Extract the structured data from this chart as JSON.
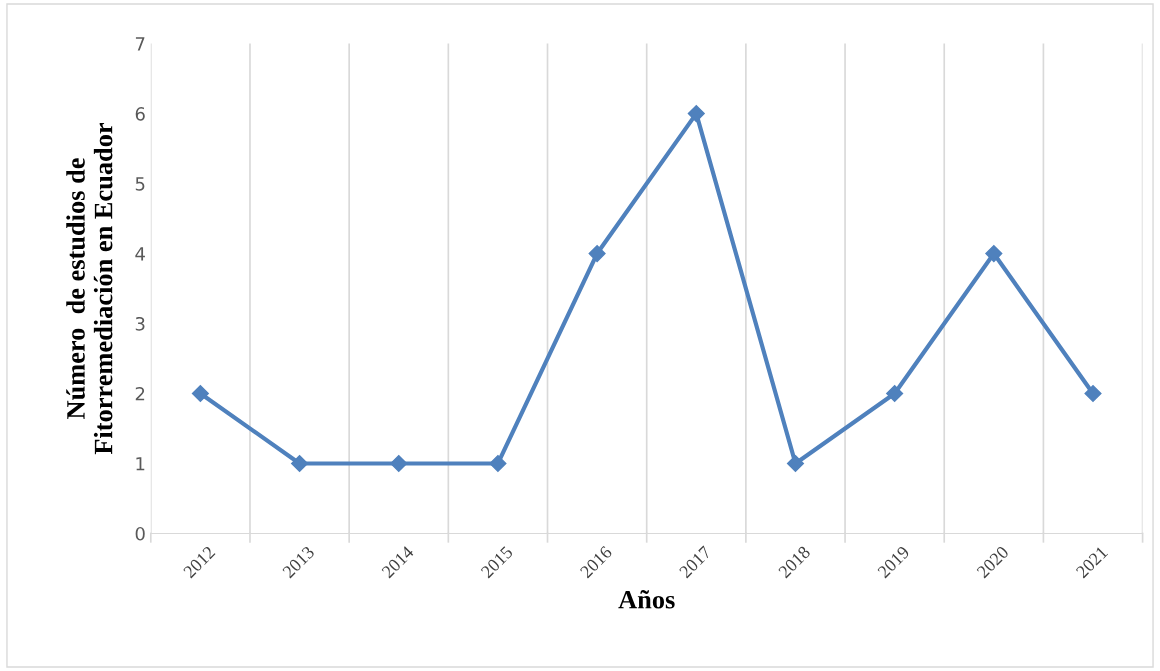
{
  "chart_data": {
    "type": "line",
    "xlabel": "Años",
    "ylabel": "Número  de estudios de\nFitorremediación en Ecuador",
    "categories": [
      "2012",
      "2013",
      "2014",
      "2015",
      "2016",
      "2017",
      "2018",
      "2019",
      "2020",
      "2021"
    ],
    "series": [
      {
        "color": "#4f81bd",
        "values": [
          2,
          1,
          1,
          1,
          4,
          6,
          1,
          2,
          4,
          2
        ]
      }
    ],
    "ylim": [
      0,
      7
    ],
    "yticks": [
      0,
      1,
      2,
      3,
      4,
      5,
      6,
      7
    ],
    "grid": "x",
    "marker": "diamond",
    "line_style": "solid",
    "legend": false
  }
}
